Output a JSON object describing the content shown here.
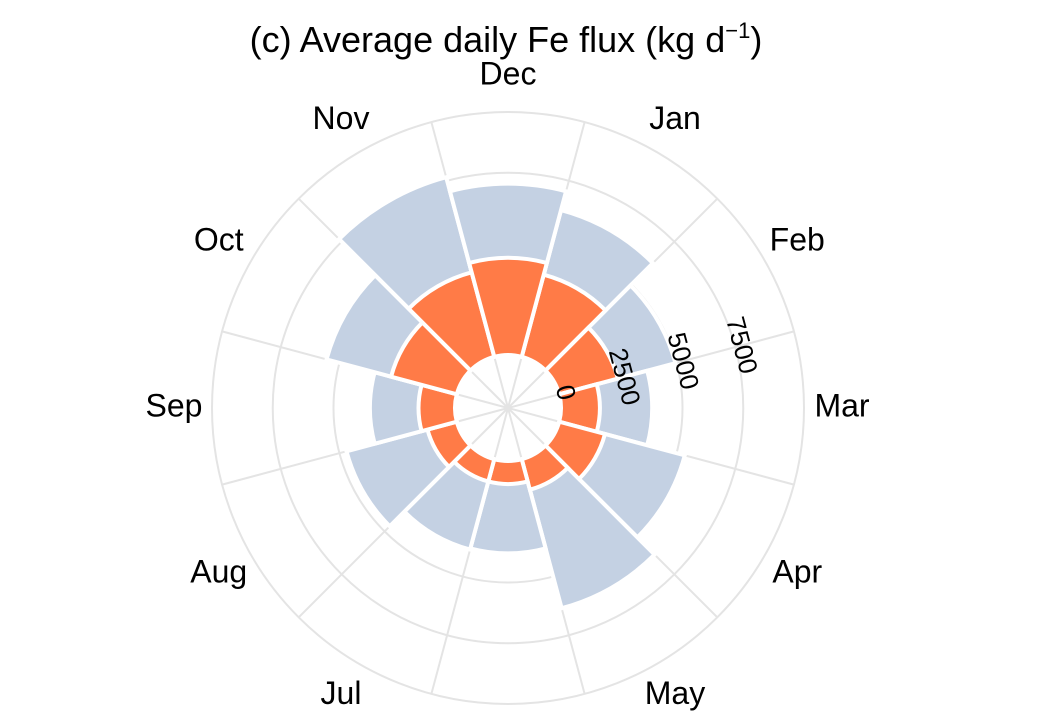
{
  "chart_data": {
    "type": "polar-bar",
    "title": "(c) Average daily Fe flux (kg d",
    "title_superscript": "−1",
    "title_suffix": ")",
    "categories": [
      "Jan",
      "Feb",
      "Mar",
      "Apr",
      "May",
      "Jun",
      "Jul",
      "Aug",
      "Sep",
      "Oct",
      "Nov",
      "Dec"
    ],
    "radial_ticks": [
      "0",
      "2500",
      "5000",
      "7500"
    ],
    "radial_tick_values": [
      0,
      2500,
      5000,
      7500
    ],
    "rmax": 10000,
    "series": [
      {
        "color": "#c4d1e3",
        "values": [
          6250,
          4950,
          3750,
          5350,
          6350,
          3800,
          3850,
          4700,
          3500,
          5550,
          7650,
          7050
        ]
      },
      {
        "color": "#ff7b47",
        "values": [
          3500,
          2500,
          1600,
          1950,
          1300,
          950,
          950,
          1250,
          1500,
          2800,
          3600,
          4000
        ]
      }
    ]
  }
}
